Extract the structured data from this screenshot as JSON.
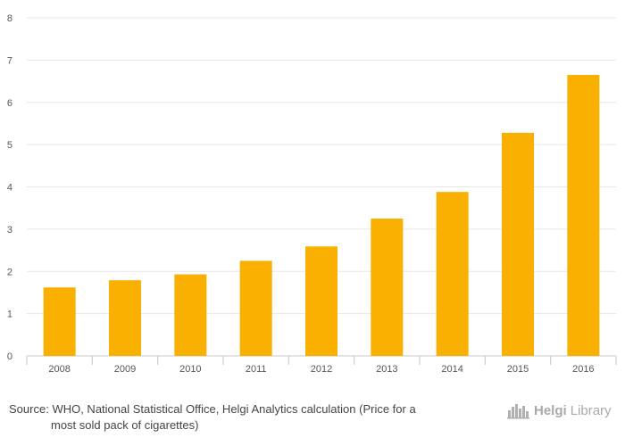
{
  "chart_data": {
    "type": "bar",
    "categories": [
      "2008",
      "2009",
      "2010",
      "2011",
      "2012",
      "2013",
      "2014",
      "2015",
      "2016"
    ],
    "values": [
      1.62,
      1.79,
      1.93,
      2.25,
      2.59,
      3.25,
      3.88,
      5.28,
      6.65
    ],
    "ylim": [
      0,
      8
    ],
    "yticks": [
      0,
      1,
      2,
      3,
      4,
      5,
      6,
      7,
      8
    ],
    "bar_color": "#f9b000",
    "grid": true,
    "title": "",
    "xlabel": "",
    "ylabel": ""
  },
  "footer": {
    "source_label": "Source:",
    "source_line1": "WHO, National Statistical Office, Helgi Analytics calculation (Price for a",
    "source_line2": "most sold pack of cigarettes)"
  },
  "logo": {
    "text1": "Helgi",
    "text2": "Library",
    "icon": "city-skyline-icon"
  }
}
